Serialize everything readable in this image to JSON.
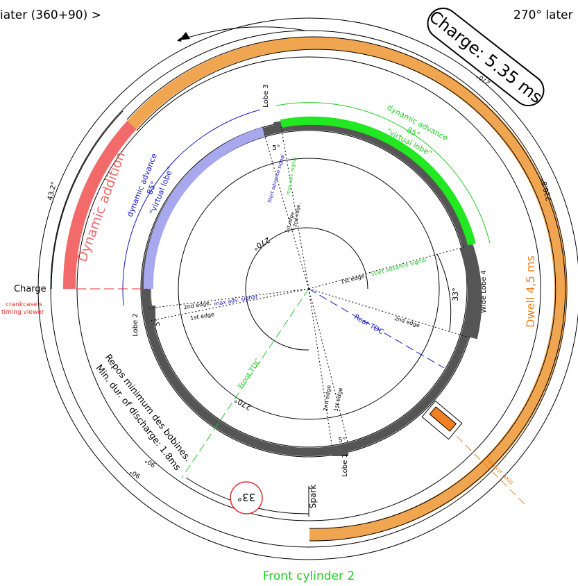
{
  "labels": {
    "top_left": "iater (360+90) >",
    "top_right": "270° later",
    "charge_badge": "Charge: 5.35 ms",
    "dwell": "Dwell 4,5 ms",
    "dynamic_addition": "Dynamic addition",
    "dyn_adv_blue_1": "dynamic advance",
    "dyn_adv_blue_2": "85°",
    "dyn_adv_blue_3": "\"virtual lobe\"",
    "dyn_adv_green_1": "dynamic advance",
    "dyn_adv_green_2": "85°",
    "dyn_adv_green_3": "\"virtual lobe\"",
    "charge_side": "Charge",
    "crankcase_1": "crankcase's",
    "crankcase_2": "timing viewer",
    "repos_1": "Repos minimum des bobines.",
    "repos_2": "Min. dur. of discharge: 1.8ms",
    "spark": "Spark",
    "spark_angle": "33°",
    "front_cylinder": "Front cylinder 2",
    "front_tdc": "Front TDC",
    "rear_tdc": "Rear TDC",
    "sensor_axis": "Sensor axis",
    "lobe1": "Lobe 1",
    "lobe2": "Lobe 2",
    "lobe3": "Lobe 3",
    "lobe4": "Wide Lobe 4",
    "angle_33": "33°",
    "angle_5_top": "5°",
    "angle_5_left": "5°",
    "angle_5_bottom": "5°",
    "first_edge_start": "1st edge.",
    "start_adv_signal": "Start advance signal",
    "second_edge_right": "2nd edge",
    "second_edge_left": "2nd edge.",
    "max_adv_signal": "max adv. signal",
    "first_edge_left": "1st edge",
    "first_edge_top": "1st edge.",
    "start_adv_top": "Start advance signal",
    "second_edge_top": "2nd edge.",
    "max_adv_top": "max adv. signal",
    "second_edge_bottom": "2nd edge",
    "first_edge_bottom": "1st edge",
    "angle_270_inner_top": "270°",
    "angle_270_inner_bottom": "270°",
    "angle_270_outer": "270°",
    "angle_226": "226.8°",
    "angle_432": "43.2°",
    "angle_90_a": "90°",
    "angle_90_b": "90°"
  },
  "colors": {
    "orange": "#f0a550",
    "red": "#f26a6a",
    "lavender": "#a8a8ee",
    "green": "#22e822",
    "dark_gray": "#555555",
    "blue": "#1515c8",
    "green_text": "#22cc22",
    "orange_text": "#f08020",
    "red_text": "#e83030"
  }
}
